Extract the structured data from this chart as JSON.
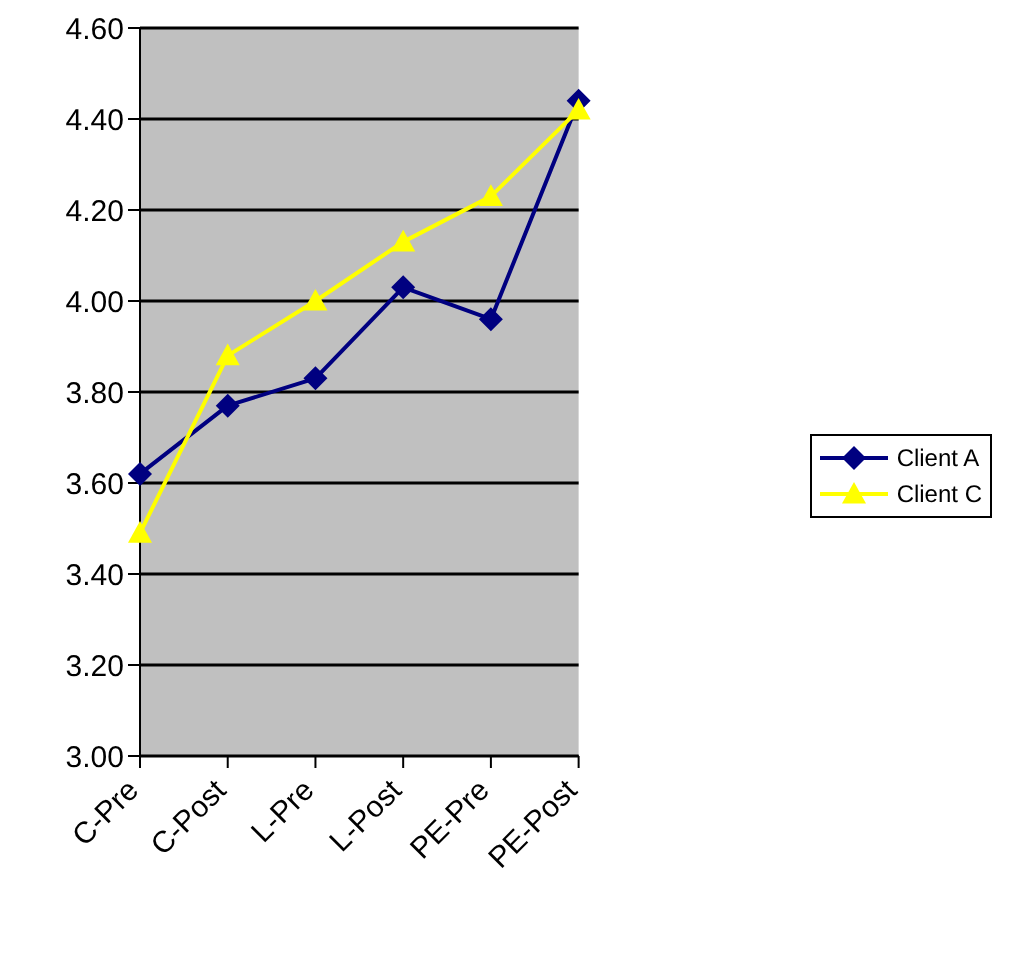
{
  "chart_data": {
    "type": "line",
    "categories": [
      "C-Pre",
      "C-Post",
      "L-Pre",
      "L-Post",
      "PE-Pre",
      "PE-Post"
    ],
    "series": [
      {
        "name": "Client A",
        "color": "#000080",
        "marker": "diamond",
        "values": [
          3.62,
          3.77,
          3.83,
          4.03,
          3.96,
          4.44
        ]
      },
      {
        "name": "Client C",
        "color": "#ffff00",
        "marker": "triangle",
        "values": [
          3.49,
          3.88,
          4.0,
          4.13,
          4.23,
          4.42
        ]
      }
    ],
    "ylim": [
      3.0,
      4.6
    ],
    "yticks": [
      {
        "value": 3.0,
        "label": "3.00"
      },
      {
        "value": 3.2,
        "label": "3.20"
      },
      {
        "value": 3.4,
        "label": "3.40"
      },
      {
        "value": 3.6,
        "label": "3.60"
      },
      {
        "value": 3.8,
        "label": "3.80"
      },
      {
        "value": 4.0,
        "label": "4.00"
      },
      {
        "value": 4.2,
        "label": "4.20"
      },
      {
        "value": 4.4,
        "label": "4.40"
      },
      {
        "value": 4.6,
        "label": "4.60"
      }
    ],
    "grid": "y",
    "legend": "right"
  }
}
